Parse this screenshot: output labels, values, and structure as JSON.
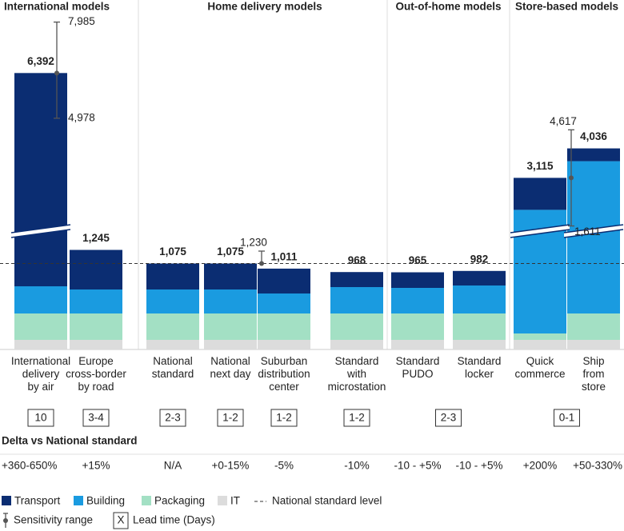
{
  "chart_data": {
    "type": "stacked-bar",
    "groups": [
      {
        "name": "International models",
        "categories": [
          "International\ndelivery\nby air",
          "Europe\ncross-border\nby road"
        ]
      },
      {
        "name": "Home delivery models",
        "categories": [
          "National\nstandard",
          "National\nnext day",
          "Suburban\ndistribution\ncenter",
          "Standard\nwith\nmicrostation"
        ]
      },
      {
        "name": "Out-of-home models",
        "categories": [
          "Standard\nPUDO",
          "Standard\nlocker"
        ]
      },
      {
        "name": "Store-based models",
        "categories": [
          "Quick\ncommerce",
          "Ship\nfrom\nstore"
        ]
      }
    ],
    "series": [
      {
        "name": "IT",
        "color": "#dcdcdc",
        "values": [
          120,
          120,
          120,
          120,
          120,
          120,
          120,
          120,
          120,
          120
        ]
      },
      {
        "name": "Packaging",
        "color": "#a3e0c4",
        "values": [
          330,
          330,
          330,
          330,
          330,
          330,
          330,
          330,
          80,
          330
        ]
      },
      {
        "name": "Building",
        "color": "#1a9be0",
        "values": [
          340,
          300,
          300,
          300,
          250,
          330,
          320,
          350,
          1915,
          3186
        ]
      },
      {
        "name": "Transport",
        "color": "#0b2d72",
        "values": [
          5602,
          495,
          325,
          325,
          311,
          188,
          195,
          182,
          1000,
          400
        ]
      }
    ],
    "legend_order": [
      3,
      2,
      1,
      0
    ],
    "totals": [
      6392,
      1245,
      1075,
      1075,
      1011,
      968,
      965,
      982,
      3115,
      4036
    ],
    "total_labels": [
      "6,392",
      "1,245",
      "1,075",
      "1,075",
      "1,011",
      "968",
      "965",
      "982",
      "3,115",
      "4,036"
    ],
    "sensitivity": [
      {
        "low": 4978,
        "high": 7985,
        "low_label": "4,978",
        "high_label": "7,985"
      },
      null,
      null,
      {
        "low": null,
        "high": 1230,
        "high_label": "1,230"
      },
      null,
      null,
      null,
      null,
      {
        "low": 1611,
        "high": 4617,
        "low_label": "1,611",
        "high_label": "4,617"
      },
      null
    ],
    "reference_line": {
      "label": "National standard level",
      "value": 1075
    },
    "axis_break": 1500,
    "lead_times": [
      "10",
      "3-4",
      "2-3",
      "1-2",
      "1-2",
      "1-2",
      "2-3",
      null,
      "0-1",
      null
    ],
    "delta_title": "Delta vs National standard",
    "deltas": [
      "+360-650%",
      "+15%",
      "N/A",
      "+0-15%",
      "-5%",
      "-10%",
      "-10 - +5%",
      "-10 - +5%",
      "+200%",
      "+50-330%"
    ],
    "sensitivity_legend": "Sensitivity range",
    "lead_time_legend": {
      "symbol": "X",
      "label": "Lead time (Days)"
    }
  }
}
